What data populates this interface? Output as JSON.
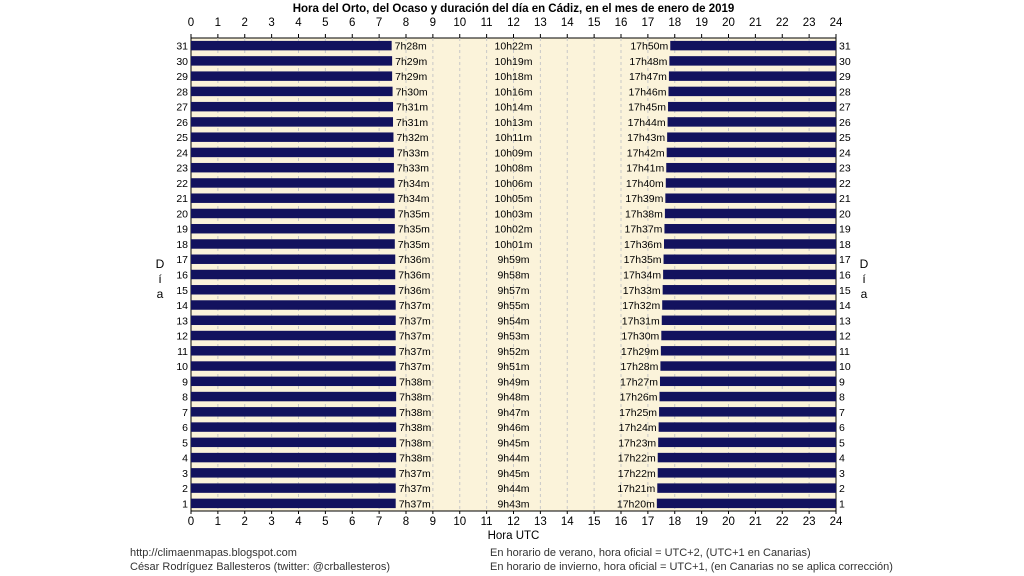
{
  "chart_data": {
    "type": "bar",
    "title": "Hora del Orto, del Ocaso y duración del día en Cádiz, en el mes de enero de 2019",
    "xlabel": "Hora UTC",
    "ylabel": "Día",
    "xlim": [
      0,
      24
    ],
    "xticks": [
      0,
      1,
      2,
      3,
      4,
      5,
      6,
      7,
      8,
      9,
      10,
      11,
      12,
      13,
      14,
      15,
      16,
      17,
      18,
      19,
      20,
      21,
      22,
      23,
      24
    ],
    "days": [
      1,
      2,
      3,
      4,
      5,
      6,
      7,
      8,
      9,
      10,
      11,
      12,
      13,
      14,
      15,
      16,
      17,
      18,
      19,
      20,
      21,
      22,
      23,
      24,
      25,
      26,
      27,
      28,
      29,
      30,
      31
    ],
    "sunrise": [
      "7h37m",
      "7h37m",
      "7h37m",
      "7h38m",
      "7h38m",
      "7h38m",
      "7h38m",
      "7h38m",
      "7h38m",
      "7h37m",
      "7h37m",
      "7h37m",
      "7h37m",
      "7h37m",
      "7h36m",
      "7h36m",
      "7h36m",
      "7h35m",
      "7h35m",
      "7h35m",
      "7h34m",
      "7h34m",
      "7h33m",
      "7h33m",
      "7h32m",
      "7h31m",
      "7h31m",
      "7h30m",
      "7h29m",
      "7h29m",
      "7h28m"
    ],
    "daylength": [
      "9h43m",
      "9h44m",
      "9h45m",
      "9h44m",
      "9h45m",
      "9h46m",
      "9h47m",
      "9h48m",
      "9h49m",
      "9h51m",
      "9h52m",
      "9h53m",
      "9h54m",
      "9h55m",
      "9h57m",
      "9h58m",
      "9h59m",
      "10h01m",
      "10h02m",
      "10h03m",
      "10h05m",
      "10h06m",
      "10h08m",
      "10h09m",
      "10h11m",
      "10h13m",
      "10h14m",
      "10h16m",
      "10h18m",
      "10h19m",
      "10h22m"
    ],
    "sunset": [
      "17h20m",
      "17h21m",
      "17h22m",
      "17h22m",
      "17h23m",
      "17h24m",
      "17h25m",
      "17h26m",
      "17h27m",
      "17h28m",
      "17h29m",
      "17h30m",
      "17h31m",
      "17h32m",
      "17h33m",
      "17h34m",
      "17h35m",
      "17h36m",
      "17h37m",
      "17h38m",
      "17h39m",
      "17h40m",
      "17h41m",
      "17h42m",
      "17h43m",
      "17h44m",
      "17h45m",
      "17h46m",
      "17h47m",
      "17h48m",
      "17h50m"
    ],
    "grid": true,
    "colors": {
      "night": "#12125e",
      "day": "#fbf3da",
      "background": "#ffffff"
    }
  },
  "footer": {
    "left_line1": "http://climaenmapas.blogspot.com",
    "left_line2": "César Rodríguez Ballesteros (twitter: @crballesteros)",
    "right_line1": "En horario de verano, hora oficial = UTC+2, (UTC+1 en Canarias)",
    "right_line2": "En horario de invierno, hora oficial = UTC+1, (en Canarias no se aplica corrección)"
  }
}
